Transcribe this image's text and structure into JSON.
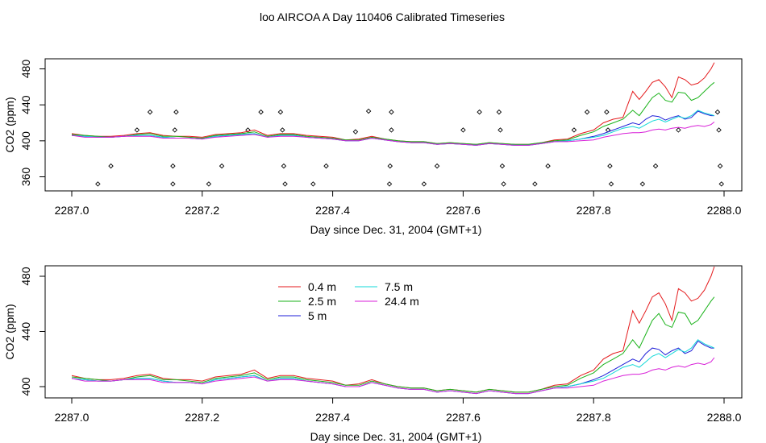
{
  "title": "loo AIRCOA A  Day 110406  Calibrated Timeseries",
  "colors": {
    "0.4 m": "#e41a1c",
    "2.5 m": "#19b219",
    "5 m": "#1f1fd8",
    "7.5 m": "#10d8d8",
    "24.4 m": "#d81fd8",
    "points": "#000000"
  },
  "chart_data": [
    {
      "type": "line",
      "panel": "top",
      "xlabel": "Day since Dec. 31, 2004 (GMT+1)",
      "ylabel": "CO2 (ppm)",
      "xlim": [
        2287.0,
        2288.0
      ],
      "ylim": [
        350,
        490
      ],
      "x_ticks": [
        2287.0,
        2287.2,
        2287.4,
        2287.6,
        2287.8,
        2288.0
      ],
      "x_tick_labels": [
        "2287.0",
        "2287.2",
        "2287.4",
        "2287.6",
        "2287.8",
        "2288.0"
      ],
      "y_ticks": [
        360,
        400,
        440,
        480
      ],
      "y_tick_labels": [
        "360",
        "400",
        "440",
        "480"
      ],
      "legend": "none",
      "grid": false,
      "line_x": [
        2287.0,
        2287.02,
        2287.04,
        2287.06,
        2287.08,
        2287.1,
        2287.12,
        2287.14,
        2287.16,
        2287.18,
        2287.2,
        2287.22,
        2287.24,
        2287.26,
        2287.28,
        2287.3,
        2287.32,
        2287.34,
        2287.36,
        2287.38,
        2287.4,
        2287.42,
        2287.44,
        2287.46,
        2287.48,
        2287.5,
        2287.52,
        2287.54,
        2287.56,
        2287.58,
        2287.6,
        2287.62,
        2287.64,
        2287.66,
        2287.68,
        2287.7,
        2287.72,
        2287.74,
        2287.76,
        2287.78,
        2287.8,
        2287.815,
        2287.83,
        2287.845,
        2287.86,
        2287.87,
        2287.88,
        2287.89,
        2287.9,
        2287.91,
        2287.92,
        2287.93,
        2287.94,
        2287.95,
        2287.96,
        2287.97,
        2287.98,
        2287.985
      ],
      "series": [
        {
          "name": "0.4 m",
          "values": [
            408,
            406,
            405,
            405,
            406,
            408,
            409,
            406,
            405,
            405,
            404,
            407,
            408,
            409,
            412,
            406,
            408,
            408,
            406,
            405,
            404,
            401,
            402,
            405,
            402,
            400,
            399,
            399,
            397,
            398,
            397,
            396,
            398,
            397,
            396,
            396,
            398,
            401,
            402,
            408,
            412,
            420,
            424,
            426,
            455,
            446,
            455,
            465,
            468,
            460,
            448,
            471,
            468,
            462,
            464,
            470,
            480,
            487
          ]
        },
        {
          "name": "2.5 m",
          "values": [
            407,
            406,
            405,
            404,
            405,
            407,
            408,
            405,
            405,
            404,
            403,
            406,
            407,
            408,
            410,
            405,
            407,
            407,
            405,
            404,
            403,
            401,
            401,
            404,
            402,
            400,
            399,
            399,
            397,
            398,
            397,
            396,
            398,
            397,
            396,
            396,
            398,
            400,
            401,
            406,
            410,
            416,
            420,
            424,
            434,
            428,
            438,
            448,
            453,
            445,
            443,
            454,
            453,
            445,
            448,
            455,
            462,
            465
          ]
        },
        {
          "name": "5 m",
          "values": [
            406,
            405,
            404,
            404,
            405,
            406,
            406,
            404,
            403,
            403,
            402,
            405,
            406,
            407,
            408,
            404,
            406,
            406,
            404,
            403,
            402,
            400,
            400,
            403,
            401,
            399,
            398,
            398,
            396,
            397,
            396,
            395,
            397,
            396,
            395,
            395,
            397,
            399,
            400,
            402,
            405,
            408,
            412,
            416,
            420,
            418,
            424,
            428,
            427,
            423,
            426,
            428,
            424,
            426,
            433,
            430,
            428,
            428
          ]
        },
        {
          "name": "7.5 m",
          "values": [
            406,
            405,
            404,
            404,
            405,
            406,
            406,
            404,
            403,
            403,
            402,
            405,
            406,
            407,
            408,
            404,
            406,
            406,
            404,
            403,
            402,
            400,
            400,
            403,
            401,
            399,
            398,
            398,
            396,
            397,
            396,
            395,
            397,
            396,
            395,
            395,
            397,
            399,
            400,
            402,
            404,
            406,
            410,
            414,
            416,
            414,
            418,
            422,
            424,
            421,
            424,
            427,
            425,
            428,
            434,
            431,
            429,
            428
          ]
        },
        {
          "name": "24.4 m",
          "values": [
            406,
            404,
            404,
            404,
            405,
            405,
            405,
            403,
            403,
            403,
            402,
            404,
            405,
            406,
            407,
            404,
            405,
            405,
            404,
            403,
            402,
            400,
            400,
            403,
            401,
            399,
            398,
            398,
            396,
            397,
            396,
            395,
            397,
            396,
            395,
            395,
            397,
            399,
            399,
            400,
            401,
            404,
            406,
            408,
            409,
            409,
            410,
            412,
            413,
            412,
            414,
            415,
            414,
            416,
            417,
            416,
            418,
            421
          ]
        }
      ],
      "points": [
        {
          "x": 2287.04,
          "y": 352
        },
        {
          "x": 2287.06,
          "y": 372
        },
        {
          "x": 2287.1,
          "y": 412
        },
        {
          "x": 2287.12,
          "y": 432
        },
        {
          "x": 2287.155,
          "y": 352
        },
        {
          "x": 2287.155,
          "y": 372
        },
        {
          "x": 2287.158,
          "y": 412
        },
        {
          "x": 2287.16,
          "y": 432
        },
        {
          "x": 2287.21,
          "y": 352
        },
        {
          "x": 2287.23,
          "y": 372
        },
        {
          "x": 2287.27,
          "y": 412
        },
        {
          "x": 2287.29,
          "y": 432
        },
        {
          "x": 2287.32,
          "y": 432
        },
        {
          "x": 2287.323,
          "y": 412
        },
        {
          "x": 2287.325,
          "y": 372
        },
        {
          "x": 2287.327,
          "y": 352
        },
        {
          "x": 2287.37,
          "y": 352
        },
        {
          "x": 2287.39,
          "y": 372
        },
        {
          "x": 2287.435,
          "y": 410
        },
        {
          "x": 2287.455,
          "y": 433
        },
        {
          "x": 2287.487,
          "y": 352
        },
        {
          "x": 2287.488,
          "y": 372
        },
        {
          "x": 2287.49,
          "y": 412
        },
        {
          "x": 2287.49,
          "y": 432
        },
        {
          "x": 2287.54,
          "y": 352
        },
        {
          "x": 2287.56,
          "y": 372
        },
        {
          "x": 2287.6,
          "y": 412
        },
        {
          "x": 2287.625,
          "y": 432
        },
        {
          "x": 2287.655,
          "y": 432
        },
        {
          "x": 2287.657,
          "y": 412
        },
        {
          "x": 2287.66,
          "y": 372
        },
        {
          "x": 2287.662,
          "y": 352
        },
        {
          "x": 2287.71,
          "y": 352
        },
        {
          "x": 2287.73,
          "y": 372
        },
        {
          "x": 2287.77,
          "y": 412
        },
        {
          "x": 2287.79,
          "y": 432
        },
        {
          "x": 2287.82,
          "y": 432
        },
        {
          "x": 2287.822,
          "y": 412
        },
        {
          "x": 2287.825,
          "y": 372
        },
        {
          "x": 2287.827,
          "y": 352
        },
        {
          "x": 2287.875,
          "y": 352
        },
        {
          "x": 2287.895,
          "y": 372
        },
        {
          "x": 2287.93,
          "y": 412
        },
        {
          "x": 2287.99,
          "y": 432
        },
        {
          "x": 2287.992,
          "y": 412
        },
        {
          "x": 2287.994,
          "y": 372
        },
        {
          "x": 2287.996,
          "y": 352
        }
      ]
    },
    {
      "type": "line",
      "panel": "bottom",
      "xlabel": "Day since Dec. 31, 2004 (GMT+1)",
      "ylabel": "CO2 (ppm)",
      "xlim": [
        2287.0,
        2288.0
      ],
      "ylim": [
        393,
        490
      ],
      "x_ticks": [
        2287.0,
        2287.2,
        2287.4,
        2287.6,
        2287.8,
        2288.0
      ],
      "x_tick_labels": [
        "2287.0",
        "2287.2",
        "2287.4",
        "2287.6",
        "2287.8",
        "2288.0"
      ],
      "y_ticks": [
        400,
        440,
        480
      ],
      "y_tick_labels": [
        "400",
        "440",
        "480"
      ],
      "legend": "top-center",
      "legend_entries": [
        "0.4 m",
        "2.5 m",
        "5 m",
        "7.5 m",
        "24.4 m"
      ],
      "grid": false,
      "series_same_as_top_panel": true
    }
  ]
}
